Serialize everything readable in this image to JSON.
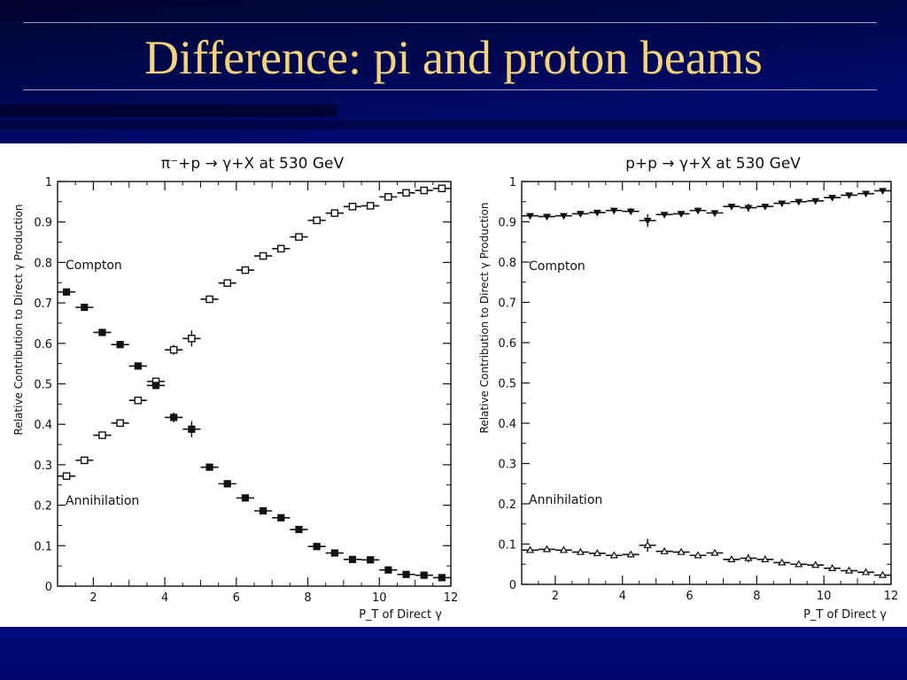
{
  "slide": {
    "title": "Difference: pi and proton beams",
    "title_color": "#f5d37a",
    "background_color": "#00066e"
  },
  "chart_data": [
    {
      "type": "scatter",
      "title": "π⁻+p → γ+X at 530 GeV",
      "xlabel": "P_T of Direct γ",
      "ylabel": "Relative Contribution to Direct γ Production",
      "xlim": [
        1,
        12
      ],
      "ylim": [
        0,
        1
      ],
      "xticks": [
        "2",
        "4",
        "6",
        "8",
        "10",
        "12"
      ],
      "yticks": [
        "0",
        "0.1",
        "0.2",
        "0.3",
        "0.4",
        "0.5",
        "0.6",
        "0.7",
        "0.8",
        "0.9",
        "1"
      ],
      "annotations": [
        {
          "text": "Compton",
          "x": 1.2,
          "y": 0.78
        },
        {
          "text": "Annihilation",
          "x": 1.2,
          "y": 0.2
        }
      ],
      "series": [
        {
          "marker": "open-square",
          "x": [
            1.25,
            1.75,
            2.25,
            2.75,
            3.25,
            3.75,
            4.25,
            4.75,
            5.25,
            5.75,
            6.25,
            6.75,
            7.25,
            7.75,
            8.25,
            8.75,
            9.25,
            9.75,
            10.25,
            10.75,
            11.25,
            11.75
          ],
          "y": [
            0.272,
            0.311,
            0.373,
            0.403,
            0.459,
            0.506,
            0.584,
            0.612,
            0.709,
            0.749,
            0.781,
            0.816,
            0.834,
            0.863,
            0.904,
            0.922,
            0.938,
            0.94,
            0.962,
            0.972,
            0.978,
            0.983
          ],
          "yerr": [
            0.006,
            0.006,
            0.006,
            0.006,
            0.006,
            0.008,
            0.012,
            0.02,
            0.006,
            0.006,
            0.006,
            0.006,
            0.006,
            0.006,
            0.006,
            0.006,
            0.006,
            0.006,
            0.006,
            0.006,
            0.006,
            0.006
          ]
        },
        {
          "marker": "filled-square",
          "x": [
            1.25,
            1.75,
            2.25,
            2.75,
            3.25,
            3.75,
            4.25,
            4.75,
            5.25,
            5.75,
            6.25,
            6.75,
            7.25,
            7.75,
            8.25,
            8.75,
            9.25,
            9.75,
            10.25,
            10.75,
            11.25,
            11.75
          ],
          "y": [
            0.727,
            0.689,
            0.627,
            0.597,
            0.544,
            0.496,
            0.417,
            0.388,
            0.294,
            0.253,
            0.218,
            0.186,
            0.169,
            0.14,
            0.098,
            0.082,
            0.066,
            0.065,
            0.04,
            0.029,
            0.027,
            0.021
          ],
          "yerr": [
            0.006,
            0.006,
            0.006,
            0.006,
            0.006,
            0.008,
            0.012,
            0.02,
            0.006,
            0.006,
            0.006,
            0.006,
            0.006,
            0.008,
            0.006,
            0.006,
            0.006,
            0.006,
            0.006,
            0.006,
            0.006,
            0.006
          ]
        }
      ]
    },
    {
      "type": "scatter",
      "title": "p+p → γ+X at 530 GeV",
      "xlabel": "P_T of Direct γ",
      "ylabel": "Relative Contribution to Direct γ Production",
      "xlim": [
        1,
        12
      ],
      "ylim": [
        0,
        1
      ],
      "xticks": [
        "2",
        "4",
        "6",
        "8",
        "10",
        "12"
      ],
      "yticks": [
        "0",
        "0.1",
        "0.2",
        "0.3",
        "0.4",
        "0.5",
        "0.6",
        "0.7",
        "0.8",
        "0.9",
        "1"
      ],
      "annotations": [
        {
          "text": "Compton",
          "x": 1.2,
          "y": 0.78
        },
        {
          "text": "Annihilation",
          "x": 1.2,
          "y": 0.2
        }
      ],
      "series": [
        {
          "marker": "filled-down-triangle",
          "x": [
            1.25,
            1.75,
            2.25,
            2.75,
            3.25,
            3.75,
            4.25,
            4.75,
            5.25,
            5.75,
            6.25,
            6.75,
            7.25,
            7.75,
            8.25,
            8.75,
            9.25,
            9.75,
            10.25,
            10.75,
            11.25,
            11.75
          ],
          "y": [
            0.915,
            0.913,
            0.915,
            0.92,
            0.923,
            0.928,
            0.926,
            0.903,
            0.918,
            0.92,
            0.928,
            0.922,
            0.938,
            0.935,
            0.938,
            0.946,
            0.95,
            0.952,
            0.96,
            0.966,
            0.97,
            0.977
          ],
          "yerr": [
            0.006,
            0.006,
            0.006,
            0.006,
            0.006,
            0.006,
            0.008,
            0.016,
            0.006,
            0.006,
            0.006,
            0.006,
            0.006,
            0.01,
            0.006,
            0.006,
            0.006,
            0.006,
            0.006,
            0.006,
            0.006,
            0.006
          ]
        },
        {
          "marker": "open-triangle",
          "x": [
            1.25,
            1.75,
            2.25,
            2.75,
            3.25,
            3.75,
            4.25,
            4.75,
            5.25,
            5.75,
            6.25,
            6.75,
            7.25,
            7.75,
            8.25,
            8.75,
            9.25,
            9.75,
            10.25,
            10.75,
            11.25,
            11.75
          ],
          "y": [
            0.085,
            0.087,
            0.085,
            0.08,
            0.077,
            0.072,
            0.074,
            0.097,
            0.082,
            0.08,
            0.072,
            0.078,
            0.062,
            0.065,
            0.062,
            0.054,
            0.05,
            0.048,
            0.04,
            0.034,
            0.03,
            0.023
          ],
          "yerr": [
            0.006,
            0.006,
            0.006,
            0.006,
            0.006,
            0.006,
            0.008,
            0.016,
            0.006,
            0.006,
            0.006,
            0.006,
            0.006,
            0.01,
            0.006,
            0.006,
            0.006,
            0.006,
            0.006,
            0.006,
            0.006,
            0.006
          ]
        }
      ]
    }
  ]
}
